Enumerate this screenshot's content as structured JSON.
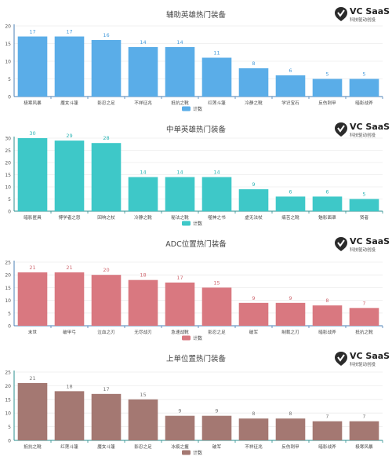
{
  "brand": {
    "name": "VC SaaS",
    "tagline": "科技驱动创投"
  },
  "chart_data": [
    {
      "type": "bar",
      "title": "辅助英雄热门装备",
      "categories": [
        "极寒风暴",
        "魔女斗篷",
        "影忍之足",
        "不祥征兆",
        "抵抗之靴",
        "红莲斗篷",
        "冷静之靴",
        "学识宝石",
        "反伤刺甲",
        "暗影战斧"
      ],
      "series": [
        {
          "name": "计数",
          "values": [
            17,
            17,
            16,
            14,
            14,
            11,
            8,
            6,
            5,
            5
          ]
        }
      ],
      "yticks": [
        0,
        5,
        10,
        15,
        20
      ],
      "ylim": [
        0,
        20
      ],
      "color": "#5aade8",
      "label_color": "#4a9ddc",
      "axis_color": "#4a7fb5",
      "legend_position": "bottom"
    },
    {
      "type": "bar",
      "title": "中单英雄热门装备",
      "categories": [
        "暗影匿具",
        "博学者之怒",
        "回响之杖",
        "冷静之靴",
        "秘法之靴",
        "噬神之书",
        "虚无法杖",
        "痛苦之靴",
        "魅影面罩",
        "贤者"
      ],
      "series": [
        {
          "name": "计数",
          "values": [
            30,
            29,
            28,
            14,
            14,
            14,
            9,
            6,
            6,
            5
          ]
        }
      ],
      "yticks": [
        0,
        5,
        10,
        15,
        20,
        25,
        30
      ],
      "ylim": [
        0,
        30
      ],
      "color": "#3ec8c8",
      "label_color": "#2fb5b5",
      "axis_color": "#2a8f8f",
      "legend_position": "bottom"
    },
    {
      "type": "bar",
      "title": "ADC位置热门装备",
      "categories": [
        "末世",
        "破甲弓",
        "泣血之刃",
        "无尽战刃",
        "急速战靴",
        "影忍之足",
        "破军",
        "制裁之刃",
        "暗影战斧",
        "抵抗之靴"
      ],
      "series": [
        {
          "name": "计数",
          "values": [
            21,
            21,
            20,
            18,
            17,
            15,
            9,
            9,
            8,
            7
          ]
        }
      ],
      "yticks": [
        0,
        5,
        10,
        15,
        20,
        25
      ],
      "ylim": [
        0,
        25
      ],
      "color": "#d97880",
      "label_color": "#d06a72",
      "axis_color": "#4a7fb5",
      "legend_position": "bottom"
    },
    {
      "type": "bar",
      "title": "上单位置热门装备",
      "categories": [
        "抵抗之靴",
        "红莲斗篷",
        "魔女斗篷",
        "影忍之足",
        "冰痕之握",
        "破军",
        "不祥征兆",
        "反伤刺甲",
        "暗影战斧",
        "极寒风暴"
      ],
      "series": [
        {
          "name": "计数",
          "values": [
            21,
            18,
            17,
            15,
            9,
            9,
            8,
            8,
            7,
            7
          ]
        }
      ],
      "yticks": [
        0,
        5,
        10,
        15,
        20,
        25
      ],
      "ylim": [
        0,
        25
      ],
      "color": "#a47872",
      "label_color": "#7a7a7a",
      "axis_color": "#2a8f8f",
      "legend_position": "bottom"
    }
  ]
}
